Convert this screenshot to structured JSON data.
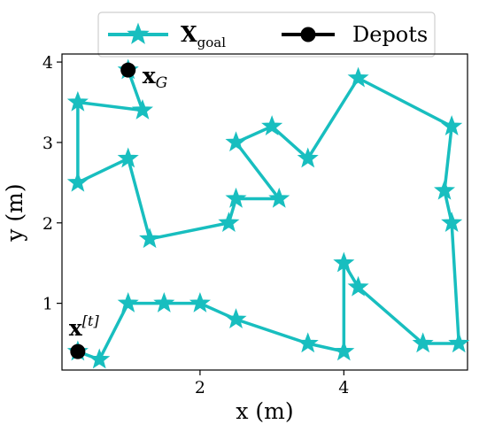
{
  "chart_data": {
    "type": "line",
    "xlabel": "x (m)",
    "ylabel": "y (m)",
    "xlim": [
      0.08,
      5.72
    ],
    "ylim": [
      0.17,
      4.1
    ],
    "xticks": [
      2,
      4
    ],
    "yticks": [
      1,
      2,
      3,
      4
    ],
    "grid": false,
    "legend": {
      "placement": "top-center-outside"
    },
    "series": [
      {
        "name": "X_goal",
        "color": "#18BEBF",
        "marker": "star",
        "points": [
          [
            0.3,
            0.4
          ],
          [
            0.6,
            0.3
          ],
          [
            1.0,
            1.0
          ],
          [
            1.5,
            1.0
          ],
          [
            2.0,
            1.0
          ],
          [
            2.5,
            0.8
          ],
          [
            3.5,
            0.5
          ],
          [
            4.0,
            0.4
          ],
          [
            4.0,
            1.5
          ],
          [
            4.2,
            1.2
          ],
          [
            5.1,
            0.5
          ],
          [
            5.6,
            0.5
          ],
          [
            5.5,
            2.0
          ],
          [
            5.4,
            2.4
          ],
          [
            5.5,
            3.2
          ],
          [
            4.2,
            3.8
          ],
          [
            3.5,
            2.8
          ],
          [
            3.0,
            3.2
          ],
          [
            2.5,
            3.0
          ],
          [
            3.1,
            2.3
          ],
          [
            2.5,
            2.3
          ],
          [
            2.4,
            2.0
          ],
          [
            1.3,
            1.8
          ],
          [
            1.0,
            2.8
          ],
          [
            0.3,
            2.5
          ],
          [
            0.3,
            3.5
          ],
          [
            1.2,
            3.4
          ],
          [
            1.0,
            3.9
          ]
        ]
      },
      {
        "name": "Depots",
        "color": "#000000",
        "marker": "circle",
        "points": [
          [
            0.3,
            0.4
          ],
          [
            1.0,
            3.9
          ]
        ]
      }
    ],
    "annotations": [
      {
        "at": [
          1.0,
          3.9
        ],
        "bold": "x",
        "sub": "G",
        "position": "right"
      },
      {
        "at": [
          0.3,
          0.4
        ],
        "bold": "x",
        "sup": "[t]",
        "position": "above"
      }
    ]
  },
  "legend": {
    "goal_label_bold": "X",
    "goal_label_sub": "goal",
    "depots_label": "Depots"
  },
  "axes": {
    "xlabel": "x (m)",
    "ylabel": "y (m)"
  }
}
